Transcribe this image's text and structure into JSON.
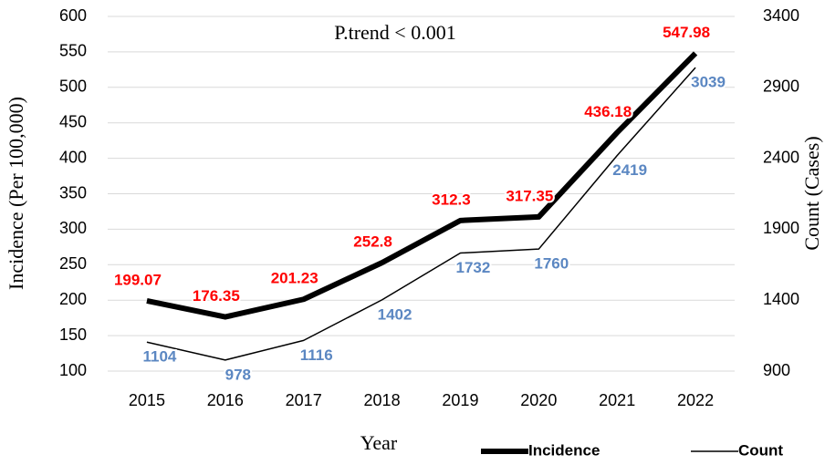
{
  "chart_data": {
    "type": "line",
    "annotation": "P.trend < 0.001",
    "x_label": "Year",
    "y_label": "Incidence (Per 100,000)",
    "y2_label": "Count (Cases)",
    "categories": [
      "2015",
      "2016",
      "2017",
      "2018",
      "2019",
      "2020",
      "2021",
      "2022"
    ],
    "series": [
      {
        "name": "Incidence",
        "color": "#000000",
        "label_color": "#ff0000",
        "values": [
          199.07,
          176.35,
          201.23,
          252.8,
          312.3,
          317.35,
          436.18,
          547.98
        ]
      },
      {
        "name": "Count",
        "color": "#000000",
        "label_color": "#5b87c2",
        "axis": "y2",
        "values": [
          1104,
          978,
          1116,
          1402,
          1732,
          1760,
          2419,
          3039
        ]
      }
    ],
    "ylim": [
      100,
      600
    ],
    "yticks": [
      100,
      150,
      200,
      250,
      300,
      350,
      400,
      450,
      500,
      550,
      600
    ],
    "y2lim": [
      900,
      3400
    ],
    "y2ticks": [
      900,
      1400,
      1900,
      2400,
      2900,
      3400
    ],
    "grid": true,
    "legend": "bottom-right"
  }
}
